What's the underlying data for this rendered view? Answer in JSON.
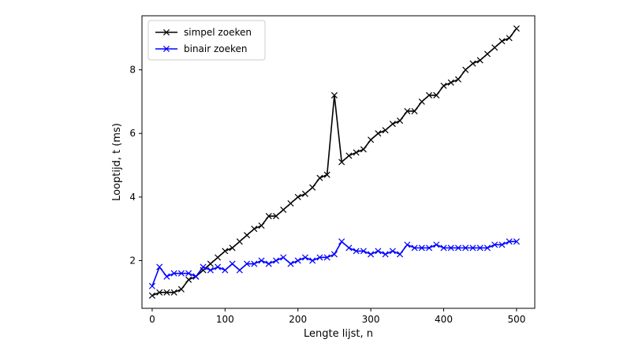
{
  "chart_data": {
    "type": "line",
    "title": "",
    "xlabel": "Lengte lijst, n",
    "ylabel": "Looptijd, t (ms)",
    "xlim": [
      -14,
      525
    ],
    "ylim": [
      0.5,
      9.7
    ],
    "xticks": [
      0,
      100,
      200,
      300,
      400,
      500
    ],
    "yticks": [
      2,
      4,
      6,
      8
    ],
    "grid": false,
    "legend": "top-left",
    "series": [
      {
        "name": "simpel zoeken",
        "color": "#000000",
        "marker": "x",
        "x": [
          0,
          10,
          20,
          30,
          40,
          50,
          60,
          70,
          80,
          90,
          100,
          110,
          120,
          130,
          140,
          150,
          160,
          170,
          180,
          190,
          200,
          210,
          220,
          230,
          240,
          250,
          260,
          270,
          280,
          290,
          300,
          310,
          320,
          330,
          340,
          350,
          360,
          370,
          380,
          390,
          400,
          410,
          420,
          430,
          440,
          450,
          460,
          470,
          480,
          490,
          500
        ],
        "y": [
          0.9,
          1.0,
          1.0,
          1.0,
          1.1,
          1.4,
          1.5,
          1.7,
          1.9,
          2.1,
          2.3,
          2.4,
          2.6,
          2.8,
          3.0,
          3.1,
          3.4,
          3.4,
          3.6,
          3.8,
          4.0,
          4.1,
          4.3,
          4.6,
          4.7,
          7.2,
          5.1,
          5.3,
          5.4,
          5.5,
          5.8,
          6.0,
          6.1,
          6.3,
          6.4,
          6.7,
          6.7,
          7.0,
          7.2,
          7.2,
          7.5,
          7.6,
          7.7,
          8.0,
          8.2,
          8.3,
          8.5,
          8.7,
          8.9,
          9.0,
          9.3
        ]
      },
      {
        "name": "binair zoeken",
        "color": "#0000ff",
        "marker": "x",
        "x": [
          0,
          10,
          20,
          30,
          40,
          50,
          60,
          70,
          80,
          90,
          100,
          110,
          120,
          130,
          140,
          150,
          160,
          170,
          180,
          190,
          200,
          210,
          220,
          230,
          240,
          250,
          260,
          270,
          280,
          290,
          300,
          310,
          320,
          330,
          340,
          350,
          360,
          370,
          380,
          390,
          400,
          410,
          420,
          430,
          440,
          450,
          460,
          470,
          480,
          490,
          500
        ],
        "y": [
          1.2,
          1.8,
          1.5,
          1.6,
          1.6,
          1.6,
          1.5,
          1.8,
          1.7,
          1.8,
          1.7,
          1.9,
          1.7,
          1.9,
          1.9,
          2.0,
          1.9,
          2.0,
          2.1,
          1.9,
          2.0,
          2.1,
          2.0,
          2.1,
          2.1,
          2.2,
          2.6,
          2.4,
          2.3,
          2.3,
          2.2,
          2.3,
          2.2,
          2.3,
          2.2,
          2.5,
          2.4,
          2.4,
          2.4,
          2.5,
          2.4,
          2.4,
          2.4,
          2.4,
          2.4,
          2.4,
          2.4,
          2.5,
          2.5,
          2.6,
          2.6
        ]
      }
    ]
  }
}
